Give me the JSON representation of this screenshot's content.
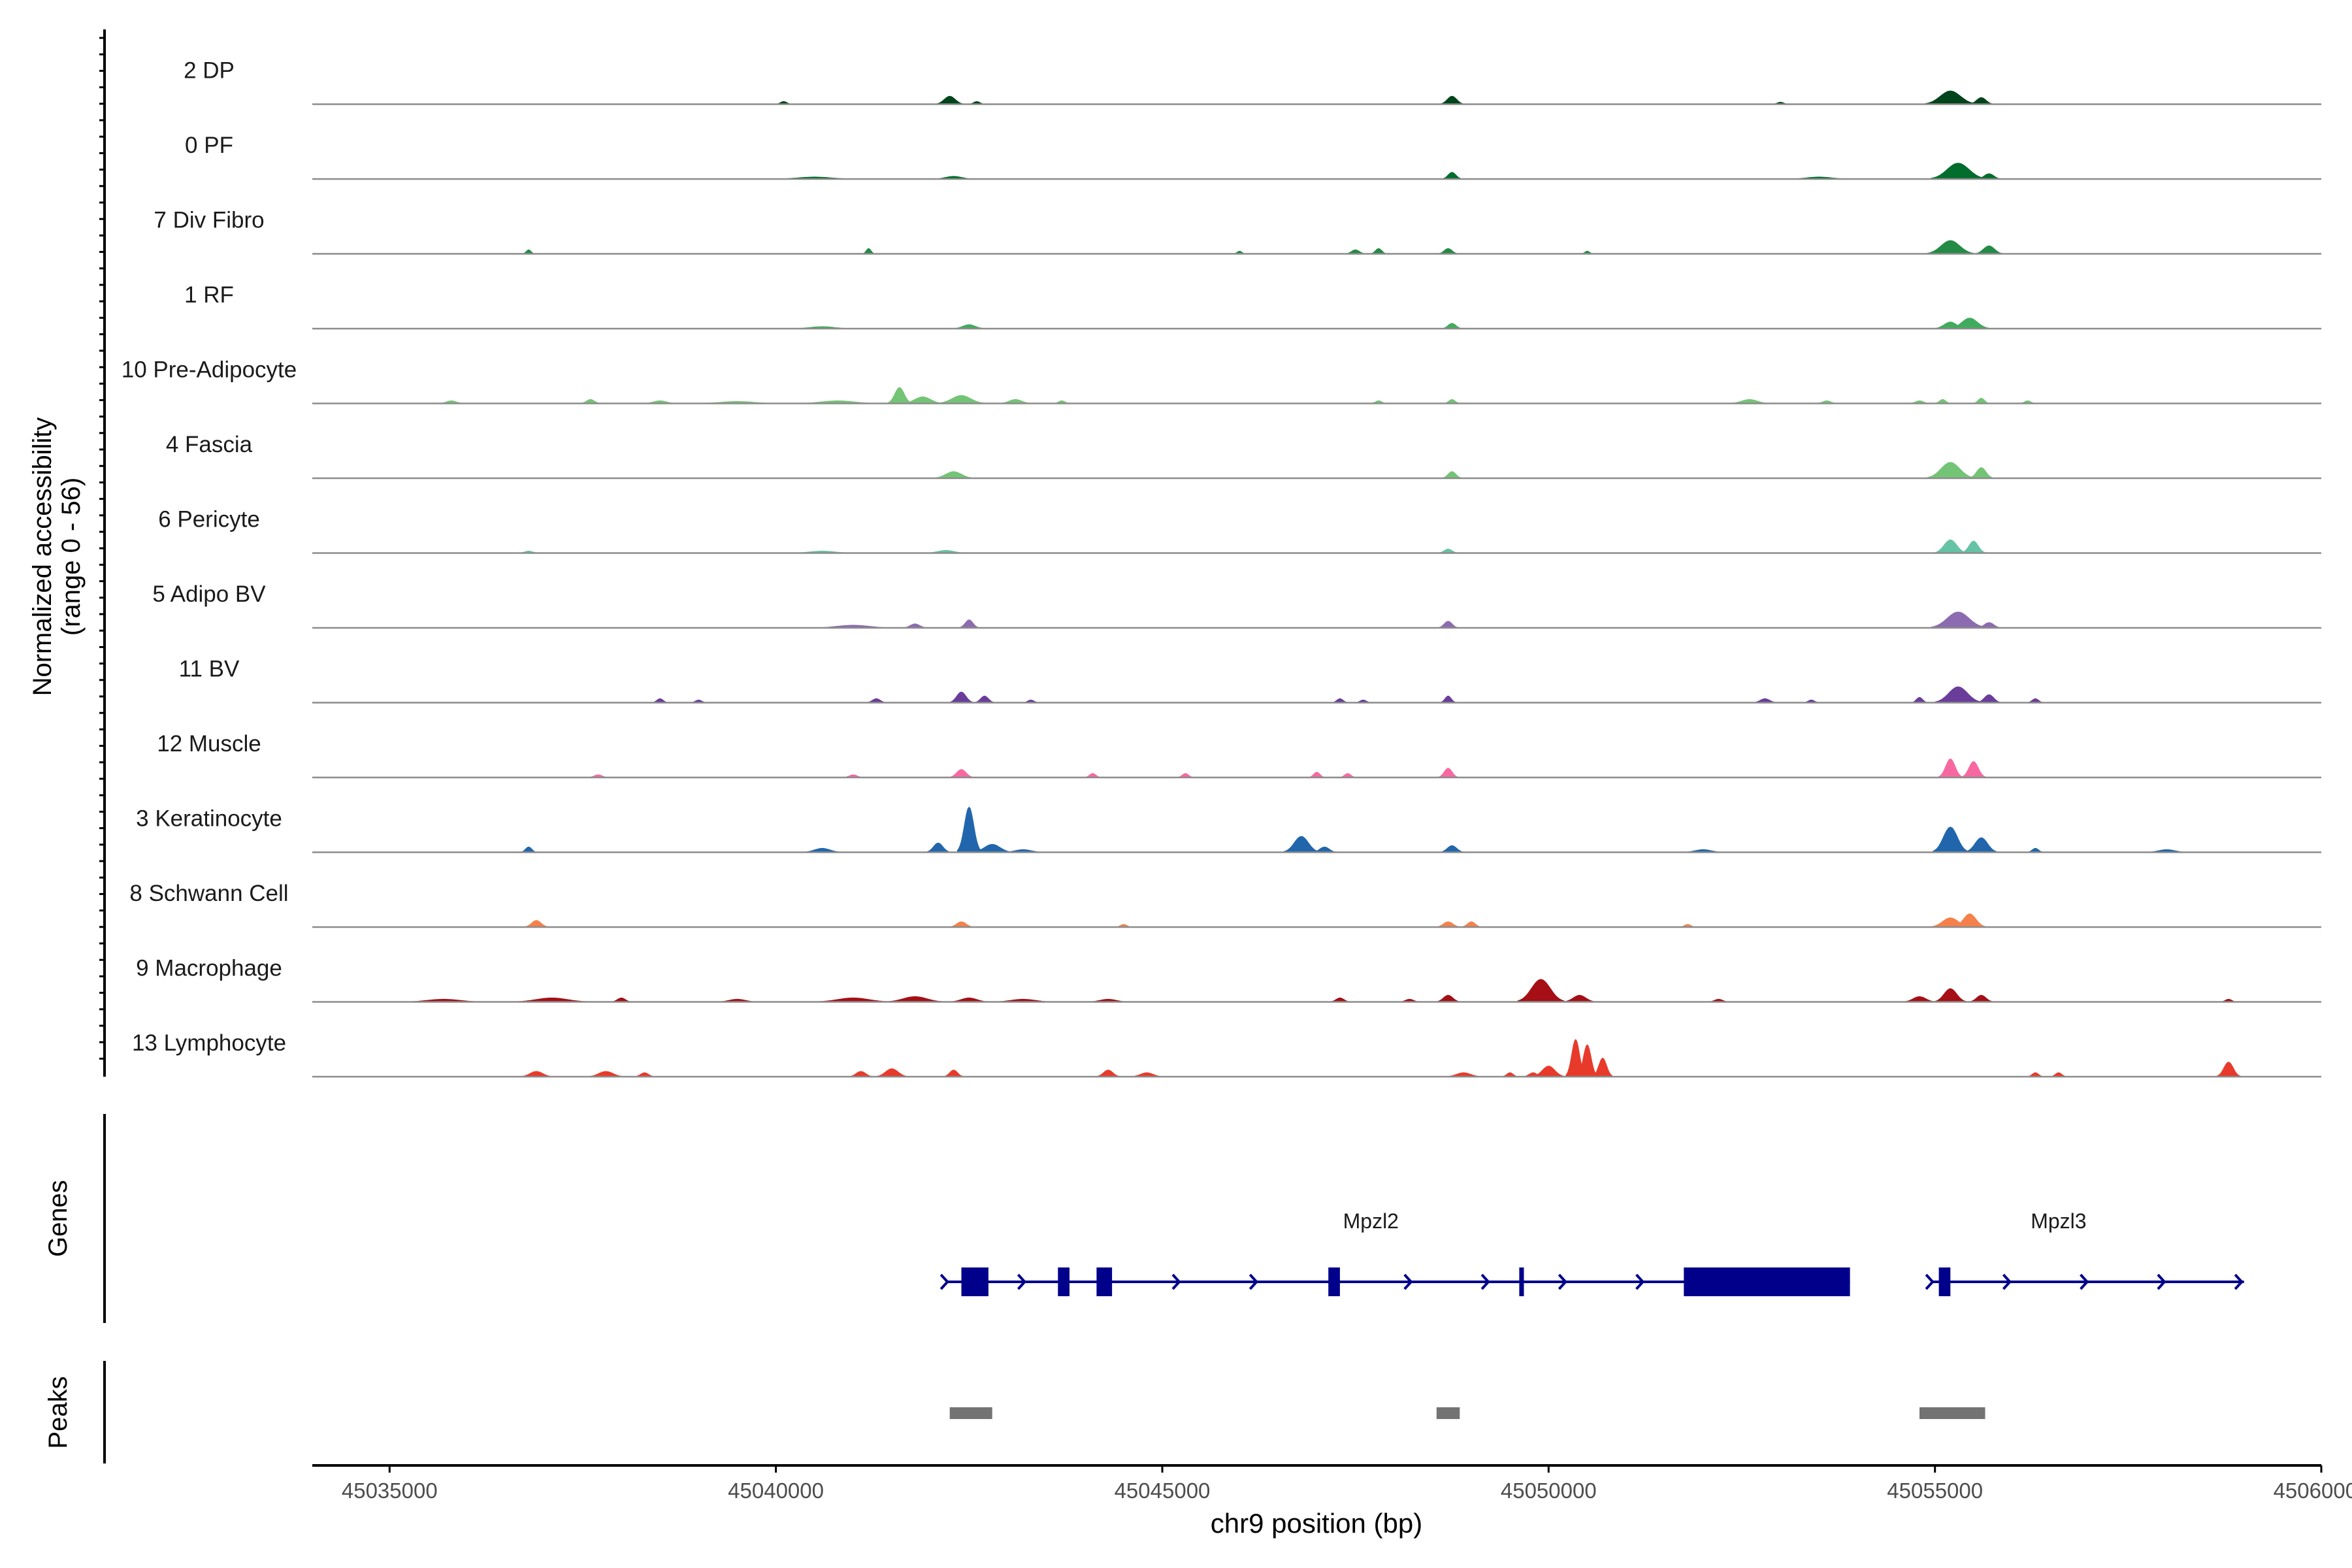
{
  "chart_data": {
    "type": "area",
    "title": "",
    "ylabel": "Normalized accessibility\n(range 0 - 56)",
    "ylabel_line1": "Normalized accessibility",
    "ylabel_line2": "(range 0 - 56)",
    "xlabel": "chr9 position (bp)",
    "chromosome": "chr9",
    "xlim": [
      45034000,
      45060000
    ],
    "ylim": [
      0,
      56
    ],
    "x_ticks": [
      45035000,
      45040000,
      45045000,
      45050000,
      45055000,
      45060000
    ],
    "x_tick_labels": [
      "45035000",
      "45040000",
      "45045000",
      "45050000",
      "45055000",
      "45060000"
    ],
    "tracks": [
      {
        "name": "2 DP",
        "color": "#00441b",
        "peaks": [
          [
            45040100,
            40,
            2
          ],
          [
            45042250,
            70,
            6
          ],
          [
            45042600,
            40,
            2
          ],
          [
            45048750,
            60,
            6
          ],
          [
            45053000,
            40,
            1.5
          ],
          [
            45055200,
            130,
            10
          ],
          [
            45055600,
            60,
            5
          ]
        ]
      },
      {
        "name": "0 PF",
        "color": "#006d2c",
        "peaks": [
          [
            45040500,
            200,
            1.5
          ],
          [
            45042300,
            100,
            2
          ],
          [
            45048750,
            50,
            5
          ],
          [
            45053500,
            150,
            1.5
          ],
          [
            45055300,
            140,
            12
          ],
          [
            45055700,
            60,
            4
          ]
        ]
      },
      {
        "name": "7 Div Fibro",
        "color": "#238b45",
        "peaks": [
          [
            45036800,
            30,
            3
          ],
          [
            45041200,
            30,
            4
          ],
          [
            45046000,
            30,
            2
          ],
          [
            45047500,
            50,
            3
          ],
          [
            45047800,
            40,
            4
          ],
          [
            45048700,
            50,
            4
          ],
          [
            45050500,
            30,
            2
          ],
          [
            45055200,
            120,
            10
          ],
          [
            45055700,
            70,
            6
          ]
        ]
      },
      {
        "name": "1 RF",
        "color": "#41ab5d",
        "peaks": [
          [
            45040600,
            150,
            1.5
          ],
          [
            45042500,
            80,
            3
          ],
          [
            45048750,
            50,
            4
          ],
          [
            45055200,
            80,
            5
          ],
          [
            45055450,
            100,
            8
          ]
        ]
      },
      {
        "name": "10 Pre-Adipocyte",
        "color": "#74c476",
        "peaks": [
          [
            45035800,
            60,
            2
          ],
          [
            45037600,
            50,
            3
          ],
          [
            45038500,
            80,
            2
          ],
          [
            45039500,
            200,
            1.5
          ],
          [
            45040800,
            200,
            2
          ],
          [
            45041600,
            60,
            12
          ],
          [
            45041900,
            100,
            5
          ],
          [
            45042400,
            120,
            6
          ],
          [
            45043100,
            80,
            3
          ],
          [
            45043700,
            40,
            2
          ],
          [
            45047800,
            40,
            2
          ],
          [
            45048750,
            40,
            3
          ],
          [
            45052600,
            100,
            3
          ],
          [
            45053600,
            50,
            2
          ],
          [
            45054800,
            50,
            2
          ],
          [
            45055100,
            40,
            3
          ],
          [
            45055600,
            40,
            4
          ],
          [
            45056200,
            40,
            2
          ]
        ]
      },
      {
        "name": "4 Fascia",
        "color": "#74c476",
        "peaks": [
          [
            45042300,
            100,
            5
          ],
          [
            45048750,
            50,
            5
          ],
          [
            45055200,
            120,
            12
          ],
          [
            45055600,
            60,
            8
          ]
        ]
      },
      {
        "name": "6 Pericyte",
        "color": "#66c2a4",
        "peaks": [
          [
            45036800,
            50,
            1.5
          ],
          [
            45040600,
            150,
            1.5
          ],
          [
            45042200,
            100,
            2
          ],
          [
            45048700,
            50,
            3
          ],
          [
            45055200,
            80,
            10
          ],
          [
            45055500,
            60,
            9
          ]
        ]
      },
      {
        "name": "5 Adipo BV",
        "color": "#8c6bb1",
        "peaks": [
          [
            45041000,
            200,
            2
          ],
          [
            45041800,
            60,
            3
          ],
          [
            45042500,
            50,
            6
          ],
          [
            45048700,
            50,
            5
          ],
          [
            45055300,
            140,
            12
          ],
          [
            45055700,
            60,
            4
          ]
        ]
      },
      {
        "name": "11 BV",
        "color": "#6a3d9a",
        "peaks": [
          [
            45038500,
            40,
            3
          ],
          [
            45039000,
            40,
            2
          ],
          [
            45041300,
            50,
            3
          ],
          [
            45042400,
            60,
            8
          ],
          [
            45042700,
            50,
            5
          ],
          [
            45043300,
            40,
            2
          ],
          [
            45047300,
            40,
            3
          ],
          [
            45047600,
            40,
            2
          ],
          [
            45048700,
            40,
            5
          ],
          [
            45052800,
            60,
            3
          ],
          [
            45053400,
            40,
            2
          ],
          [
            45054800,
            40,
            4
          ],
          [
            45055300,
            120,
            12
          ],
          [
            45055700,
            60,
            6
          ],
          [
            45056300,
            40,
            3
          ]
        ]
      },
      {
        "name": "12 Muscle",
        "color": "#f768a1",
        "peaks": [
          [
            45037700,
            50,
            2
          ],
          [
            45041000,
            50,
            2
          ],
          [
            45042400,
            60,
            6
          ],
          [
            45044100,
            40,
            3
          ],
          [
            45045300,
            40,
            3
          ],
          [
            45047000,
            40,
            4
          ],
          [
            45047400,
            40,
            3
          ],
          [
            45048700,
            50,
            7
          ],
          [
            45055200,
            60,
            14
          ],
          [
            45055500,
            60,
            12
          ]
        ]
      },
      {
        "name": "3 Keratinocyte",
        "color": "#2166ac",
        "peaks": [
          [
            45036800,
            40,
            4
          ],
          [
            45040600,
            100,
            3
          ],
          [
            45042100,
            60,
            7
          ],
          [
            45042500,
            60,
            34
          ],
          [
            45042800,
            100,
            6
          ],
          [
            45043200,
            100,
            2
          ],
          [
            45046800,
            90,
            12
          ],
          [
            45047100,
            60,
            4
          ],
          [
            45048750,
            60,
            5
          ],
          [
            45052000,
            100,
            2
          ],
          [
            45055200,
            90,
            19
          ],
          [
            45055600,
            80,
            11
          ],
          [
            45056300,
            40,
            3
          ],
          [
            45058000,
            100,
            2
          ]
        ]
      },
      {
        "name": "8 Schwann Cell",
        "color": "#f4814b",
        "peaks": [
          [
            45036900,
            60,
            5
          ],
          [
            45042400,
            60,
            4
          ],
          [
            45044500,
            40,
            2
          ],
          [
            45048700,
            60,
            4
          ],
          [
            45049000,
            50,
            4
          ],
          [
            45051800,
            40,
            2
          ],
          [
            45055200,
            100,
            7
          ],
          [
            45055450,
            80,
            10
          ]
        ]
      },
      {
        "name": "9 Macrophage",
        "color": "#a50f15",
        "peaks": [
          [
            45035700,
            200,
            2
          ],
          [
            45037100,
            200,
            3
          ],
          [
            45038000,
            50,
            3
          ],
          [
            45039500,
            100,
            2
          ],
          [
            45041000,
            200,
            3
          ],
          [
            45041800,
            150,
            4
          ],
          [
            45042500,
            100,
            3
          ],
          [
            45043200,
            150,
            2
          ],
          [
            45044300,
            100,
            2
          ],
          [
            45047300,
            50,
            3
          ],
          [
            45048200,
            50,
            2
          ],
          [
            45048700,
            60,
            5
          ],
          [
            45049900,
            120,
            17
          ],
          [
            45050400,
            80,
            5
          ],
          [
            45052200,
            50,
            2
          ],
          [
            45054800,
            80,
            4
          ],
          [
            45055200,
            80,
            10
          ],
          [
            45055600,
            60,
            5
          ],
          [
            45058800,
            40,
            2
          ]
        ]
      },
      {
        "name": "13 Lymphocyte",
        "color": "#e83a2b",
        "peaks": [
          [
            45036900,
            80,
            4
          ],
          [
            45037800,
            90,
            4
          ],
          [
            45038300,
            50,
            3
          ],
          [
            45041100,
            60,
            4
          ],
          [
            45041500,
            80,
            6
          ],
          [
            45042300,
            50,
            5
          ],
          [
            45044300,
            60,
            5
          ],
          [
            45044800,
            80,
            3
          ],
          [
            45048900,
            90,
            3
          ],
          [
            45049500,
            40,
            3
          ],
          [
            45049800,
            50,
            3
          ],
          [
            45050000,
            80,
            8
          ],
          [
            45050350,
            50,
            28
          ],
          [
            45050500,
            50,
            24
          ],
          [
            45050700,
            50,
            14
          ],
          [
            45056300,
            40,
            3
          ],
          [
            45056600,
            40,
            3
          ],
          [
            45058800,
            60,
            11
          ]
        ]
      }
    ],
    "genes_track_label": "Genes",
    "genes": [
      {
        "name": "Mpzl2",
        "label_x": 45047700,
        "start": 45042200,
        "end": 45053900,
        "strand": "+",
        "exons": [
          [
            45042400,
            45042750
          ],
          [
            45043650,
            45043800
          ],
          [
            45044150,
            45044350
          ],
          [
            45047150,
            45047300
          ],
          [
            45049620,
            45049680
          ],
          [
            45051750,
            45053900
          ]
        ]
      },
      {
        "name": "Mpzl3",
        "label_x": 45056600,
        "start": 45054950,
        "end": 45059000,
        "strand": "+",
        "exons": [
          [
            45055050,
            45055200
          ]
        ]
      }
    ],
    "peaks_track_label": "Peaks",
    "called_peaks": [
      [
        45042250,
        45042800
      ],
      [
        45048550,
        45048850
      ],
      [
        45054800,
        45055650
      ]
    ]
  },
  "colors": {
    "gene": "#00008b",
    "peak": "#737373",
    "baseline": "#8c8c8c",
    "axis": "#000000"
  }
}
